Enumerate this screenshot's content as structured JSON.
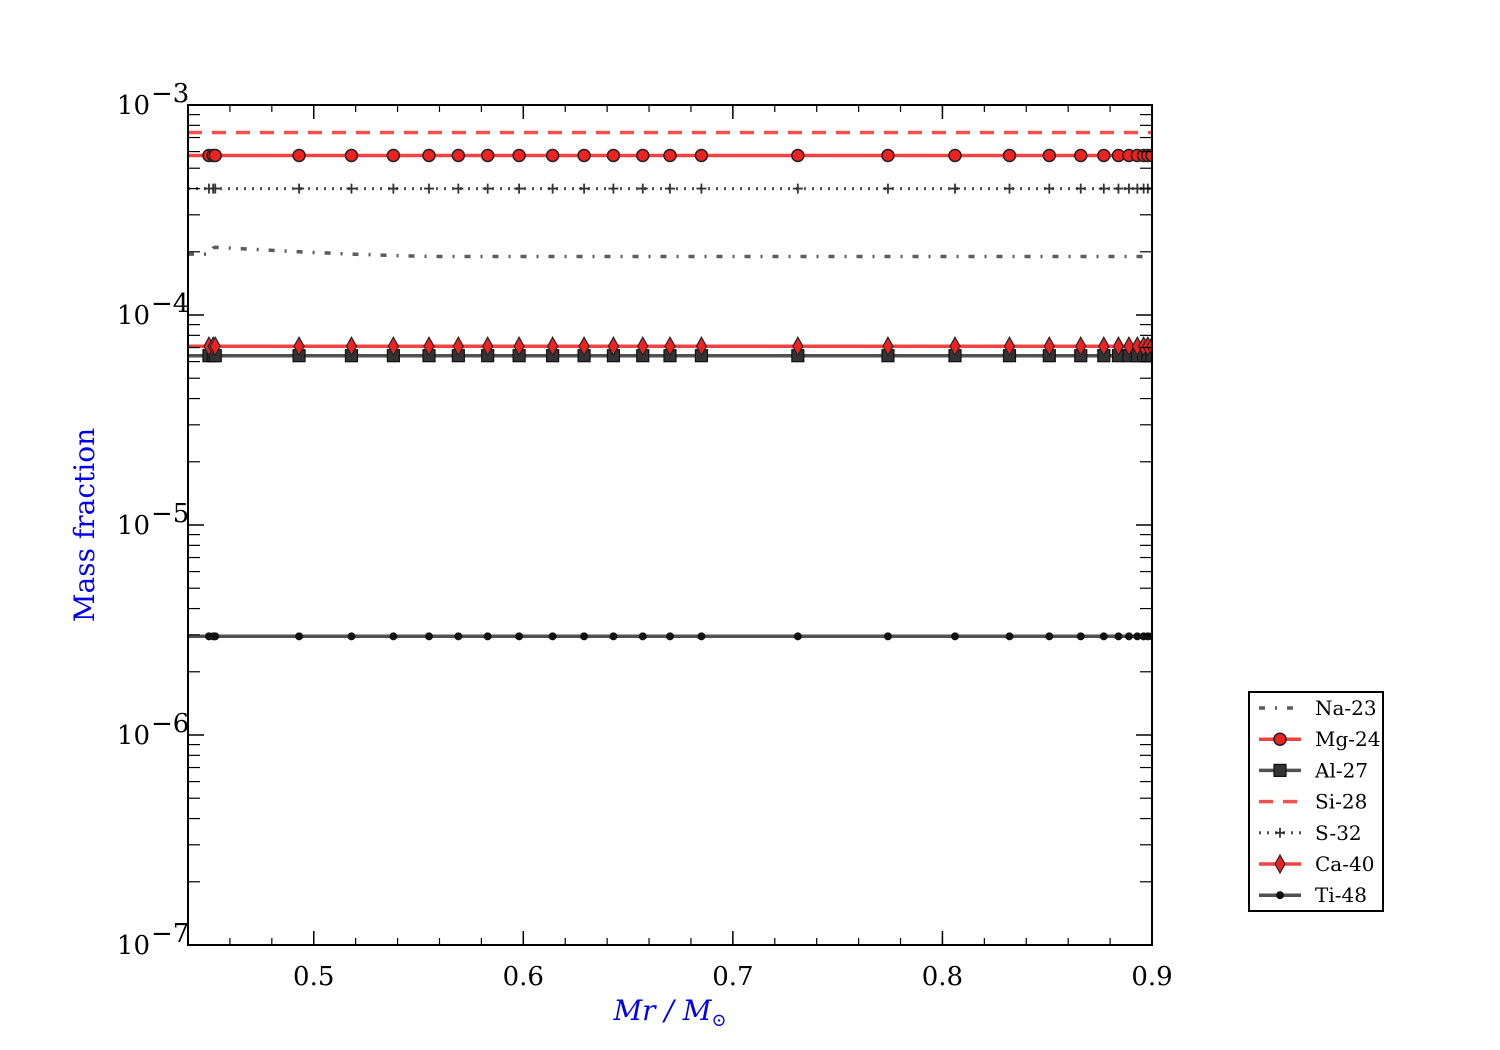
{
  "chart_data": {
    "type": "line",
    "title": "",
    "xlabel": "Mr / M⊙",
    "ylabel": "Mass fraction",
    "x_scale": "linear",
    "y_scale": "log",
    "xlim": [
      0.44,
      0.9
    ],
    "ylim": [
      1e-07,
      0.001
    ],
    "x_ticks": [
      0.5,
      0.6,
      0.7,
      0.8,
      0.9
    ],
    "x_tick_labels": [
      "0.5",
      "0.6",
      "0.7",
      "0.8",
      "0.9"
    ],
    "y_ticks": [
      1e-07,
      1e-06,
      1e-05,
      0.0001,
      0.001
    ],
    "y_tick_labels": [
      {
        "base": "10",
        "exp": "−7"
      },
      {
        "base": "10",
        "exp": "−6"
      },
      {
        "base": "10",
        "exp": "−5"
      },
      {
        "base": "10",
        "exp": "−4"
      },
      {
        "base": "10",
        "exp": "−3"
      }
    ],
    "grid": false,
    "legend_position": "outside lower right",
    "x": [
      0.44,
      0.45,
      0.452,
      0.453,
      0.493,
      0.518,
      0.538,
      0.555,
      0.569,
      0.583,
      0.598,
      0.614,
      0.629,
      0.643,
      0.657,
      0.67,
      0.685,
      0.731,
      0.774,
      0.806,
      0.832,
      0.851,
      0.866,
      0.877,
      0.884,
      0.889,
      0.893,
      0.896,
      0.898,
      0.9
    ],
    "series": [
      {
        "name": "Na-23",
        "color": "#404040",
        "dash": "6,10,2,10",
        "width": 3.5,
        "marker": "none",
        "values": [
          0.000195,
          0.000195,
          0.000208,
          0.00021,
          0.0002,
          0.000195,
          0.000192,
          0.00019,
          0.00019,
          0.00019,
          0.00019,
          0.00019,
          0.00019,
          0.00019,
          0.00019,
          0.00019,
          0.00019,
          0.00019,
          0.00019,
          0.00019,
          0.00019,
          0.00019,
          0.00019,
          0.00019,
          0.00019,
          0.00019,
          0.00019,
          0.00019,
          0.00019,
          0.00019
        ]
      },
      {
        "name": "Mg-24",
        "color": "#ee2222",
        "dash": "",
        "width": 3.5,
        "marker": "circle",
        "values": [
          0.000575,
          0.000575,
          0.000575,
          0.000575,
          0.000575,
          0.000575,
          0.000575,
          0.000575,
          0.000575,
          0.000575,
          0.000575,
          0.000575,
          0.000575,
          0.000575,
          0.000575,
          0.000575,
          0.000575,
          0.000575,
          0.000575,
          0.000575,
          0.000575,
          0.000575,
          0.000575,
          0.000575,
          0.000575,
          0.000575,
          0.000575,
          0.000575,
          0.000575,
          0.000575
        ]
      },
      {
        "name": "Al-27",
        "color": "#333333",
        "dash": "",
        "width": 3.5,
        "marker": "square",
        "values": [
          6.4e-05,
          6.4e-05,
          6.4e-05,
          6.4e-05,
          6.4e-05,
          6.4e-05,
          6.4e-05,
          6.4e-05,
          6.4e-05,
          6.4e-05,
          6.4e-05,
          6.4e-05,
          6.4e-05,
          6.4e-05,
          6.4e-05,
          6.4e-05,
          6.4e-05,
          6.4e-05,
          6.4e-05,
          6.4e-05,
          6.4e-05,
          6.4e-05,
          6.4e-05,
          6.4e-05,
          6.4e-05,
          6.4e-05,
          6.4e-05,
          6.4e-05,
          6.4e-05,
          6.4e-05
        ]
      },
      {
        "name": "Si-28",
        "color": "#ee3333",
        "dash": "14,10",
        "width": 3.5,
        "marker": "none",
        "values": [
          0.00074,
          0.00074,
          0.00074,
          0.00074,
          0.00074,
          0.00074,
          0.00074,
          0.00074,
          0.00074,
          0.00074,
          0.00074,
          0.00074,
          0.00074,
          0.00074,
          0.00074,
          0.00074,
          0.00074,
          0.00074,
          0.00074,
          0.00074,
          0.00074,
          0.00074,
          0.00074,
          0.00074,
          0.00074,
          0.00074,
          0.00074,
          0.00074,
          0.00074,
          0.00074
        ]
      },
      {
        "name": "S-32",
        "color": "#333333",
        "dash": "2,6",
        "width": 3,
        "marker": "plus",
        "values": [
          0.0004,
          0.0004,
          0.0004,
          0.0004,
          0.0004,
          0.0004,
          0.0004,
          0.0004,
          0.0004,
          0.0004,
          0.0004,
          0.0004,
          0.0004,
          0.0004,
          0.0004,
          0.0004,
          0.0004,
          0.0004,
          0.0004,
          0.0004,
          0.0004,
          0.0004,
          0.0004,
          0.0004,
          0.0004,
          0.0004,
          0.0004,
          0.0004,
          0.0004,
          0.0004
        ]
      },
      {
        "name": "Ca-40",
        "color": "#ee2222",
        "dash": "",
        "width": 3.5,
        "marker": "diamond",
        "values": [
          7.1e-05,
          7.1e-05,
          7.1e-05,
          7.1e-05,
          7.1e-05,
          7.1e-05,
          7.1e-05,
          7.1e-05,
          7.1e-05,
          7.1e-05,
          7.1e-05,
          7.1e-05,
          7.1e-05,
          7.1e-05,
          7.1e-05,
          7.1e-05,
          7.1e-05,
          7.1e-05,
          7.1e-05,
          7.1e-05,
          7.1e-05,
          7.1e-05,
          7.1e-05,
          7.1e-05,
          7.1e-05,
          7.1e-05,
          7.1e-05,
          7.1e-05,
          7.1e-05,
          7.1e-05
        ]
      },
      {
        "name": "Ti-48",
        "color": "#333333",
        "dash": "",
        "width": 3.5,
        "marker": "dot",
        "values": [
          2.95e-06,
          2.95e-06,
          2.95e-06,
          2.95e-06,
          2.95e-06,
          2.95e-06,
          2.95e-06,
          2.95e-06,
          2.95e-06,
          2.95e-06,
          2.95e-06,
          2.95e-06,
          2.95e-06,
          2.95e-06,
          2.95e-06,
          2.95e-06,
          2.95e-06,
          2.95e-06,
          2.95e-06,
          2.95e-06,
          2.95e-06,
          2.95e-06,
          2.95e-06,
          2.95e-06,
          2.95e-06,
          2.95e-06,
          2.95e-06,
          2.95e-06,
          2.95e-06,
          2.95e-06
        ]
      }
    ]
  }
}
